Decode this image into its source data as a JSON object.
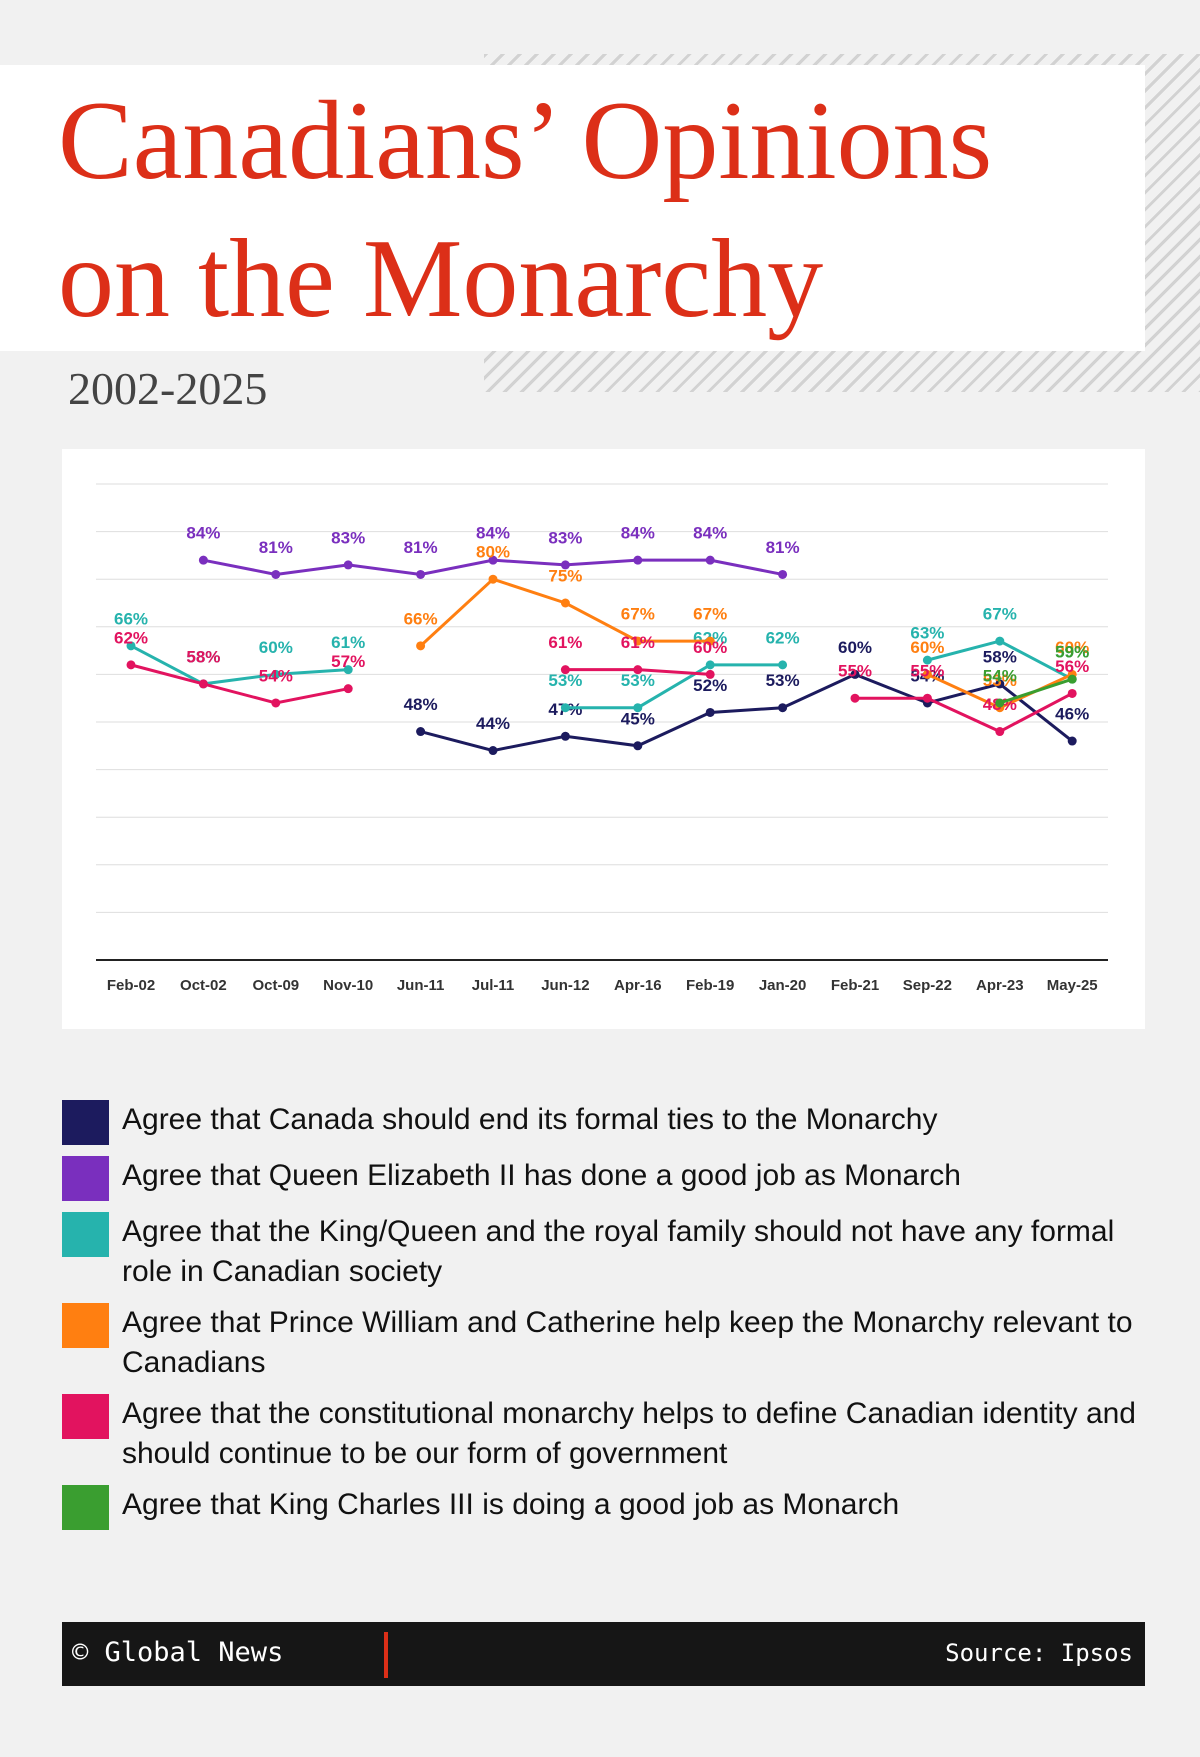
{
  "header": {
    "title": [
      "Canadians’ Opinions",
      "on the Monarchy"
    ],
    "subtitle": "2002-2025"
  },
  "chart_data": {
    "type": "line",
    "categories": [
      "Feb-02",
      "Oct-02",
      "Oct-09",
      "Nov-10",
      "Jun-11",
      "Jul-11",
      "Jun-12",
      "Apr-16",
      "Feb-19",
      "Jan-20",
      "Feb-21",
      "Sep-22",
      "Apr-23",
      "May-25"
    ],
    "ylim": [
      0,
      100
    ],
    "yticks": [
      0,
      10,
      20,
      30,
      40,
      50,
      60,
      70,
      80,
      90,
      100
    ],
    "grid": true,
    "series": [
      {
        "name": "Agree that Canada should end its formal ties to the Monarchy",
        "color": "#1c1b5e",
        "values": [
          null,
          null,
          null,
          null,
          48,
          44,
          47,
          45,
          52,
          53,
          60,
          54,
          58,
          46
        ],
        "value_labels": [
          null,
          null,
          null,
          null,
          "48%",
          "44%",
          "47%",
          "45%",
          "52%",
          "53%",
          "60%",
          "54%",
          "58%",
          "46%"
        ]
      },
      {
        "name": "Agree that Queen Elizabeth II has done a good job as Monarch",
        "color": "#7a2fbe",
        "values": [
          null,
          84,
          81,
          83,
          81,
          84,
          83,
          84,
          84,
          81,
          null,
          null,
          null,
          null
        ],
        "value_labels": [
          null,
          "84%",
          "81%",
          "83%",
          "81%",
          "84%",
          "83%",
          "84%",
          "84%",
          "81%",
          null,
          null,
          null,
          null
        ]
      },
      {
        "name": "Agree that the King/Queen and the royal family should not have any formal role in Canadian society",
        "color": "#26b3ad",
        "values": [
          66,
          58,
          60,
          61,
          null,
          null,
          53,
          53,
          62,
          62,
          null,
          63,
          67,
          59
        ],
        "value_labels": [
          "66%",
          "58%",
          "60%",
          "61%",
          null,
          null,
          "53%",
          "53%",
          "62%",
          "62%",
          null,
          "63%",
          "67%",
          "59%"
        ]
      },
      {
        "name": "Agree that Prince William and Catherine help keep the Monarchy relevant to Canadians",
        "color": "#ff7f11",
        "values": [
          null,
          null,
          null,
          null,
          66,
          80,
          75,
          67,
          67,
          null,
          null,
          60,
          53,
          60
        ],
        "value_labels": [
          null,
          null,
          null,
          null,
          "66%",
          "80%",
          "75%",
          "67%",
          "67%",
          null,
          null,
          "60%",
          "53%",
          "60%"
        ]
      },
      {
        "name": "Agree that the constitutional monarchy helps to define Canadian identity and should continue to be our form of government",
        "color": "#e2135f",
        "values": [
          62,
          58,
          54,
          57,
          null,
          null,
          61,
          61,
          60,
          null,
          55,
          55,
          48,
          56
        ],
        "value_labels": [
          "62%",
          "58%",
          "54%",
          "57%",
          null,
          null,
          "61%",
          "61%",
          "60%",
          null,
          "55%",
          "55%",
          "48%",
          "56%"
        ]
      },
      {
        "name": "Agree that King Charles III is doing a good job as Monarch",
        "color": "#3a9e30",
        "values": [
          null,
          null,
          null,
          null,
          null,
          null,
          null,
          null,
          null,
          null,
          null,
          null,
          54,
          59
        ],
        "value_labels": [
          null,
          null,
          null,
          null,
          null,
          null,
          null,
          null,
          null,
          null,
          null,
          null,
          "54%",
          "59%"
        ]
      }
    ]
  },
  "footer": {
    "credit": "© Global News",
    "source": "Source: Ipsos"
  }
}
